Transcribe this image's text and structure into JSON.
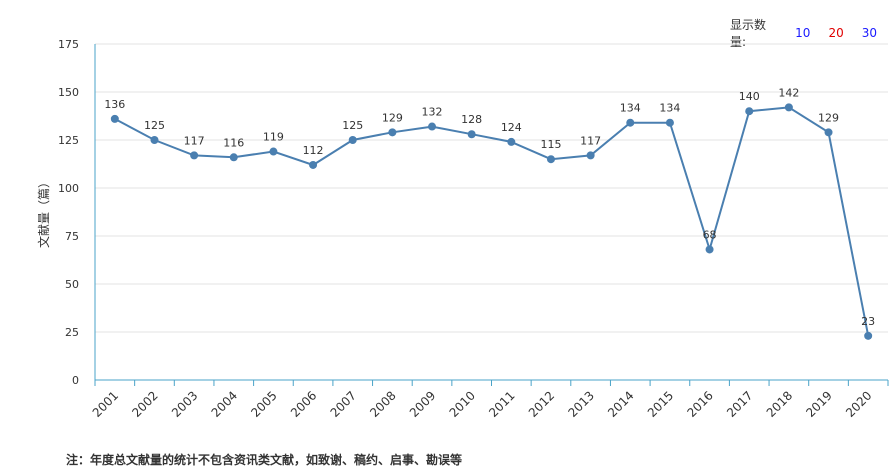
{
  "controls": {
    "label": "显示数量:",
    "options": [
      {
        "label": "10",
        "color": "#1a1aff"
      },
      {
        "label": "20",
        "color": "#e00000"
      },
      {
        "label": "30",
        "color": "#1a1aff"
      }
    ]
  },
  "footnote": "注：年度总文献量的统计不包含资讯类文献，如致谢、稿约、启事、勘误等",
  "chart_data": {
    "type": "line",
    "ylabel": "文献量（篇）",
    "xlabel": "",
    "ylim": [
      0,
      175
    ],
    "yticks": [
      0,
      25,
      50,
      75,
      100,
      125,
      150,
      175
    ],
    "grid": true,
    "line_color": "#4a7fb0",
    "categories": [
      "2001",
      "2002",
      "2003",
      "2004",
      "2005",
      "2006",
      "2007",
      "2008",
      "2009",
      "2010",
      "2011",
      "2012",
      "2013",
      "2014",
      "2015",
      "2016",
      "2017",
      "2018",
      "2019",
      "2020"
    ],
    "series": [
      {
        "values": [
          136,
          125,
          117,
          116,
          119,
          112,
          125,
          129,
          132,
          128,
          124,
          115,
          117,
          134,
          134,
          68,
          140,
          142,
          129,
          23
        ]
      }
    ]
  }
}
